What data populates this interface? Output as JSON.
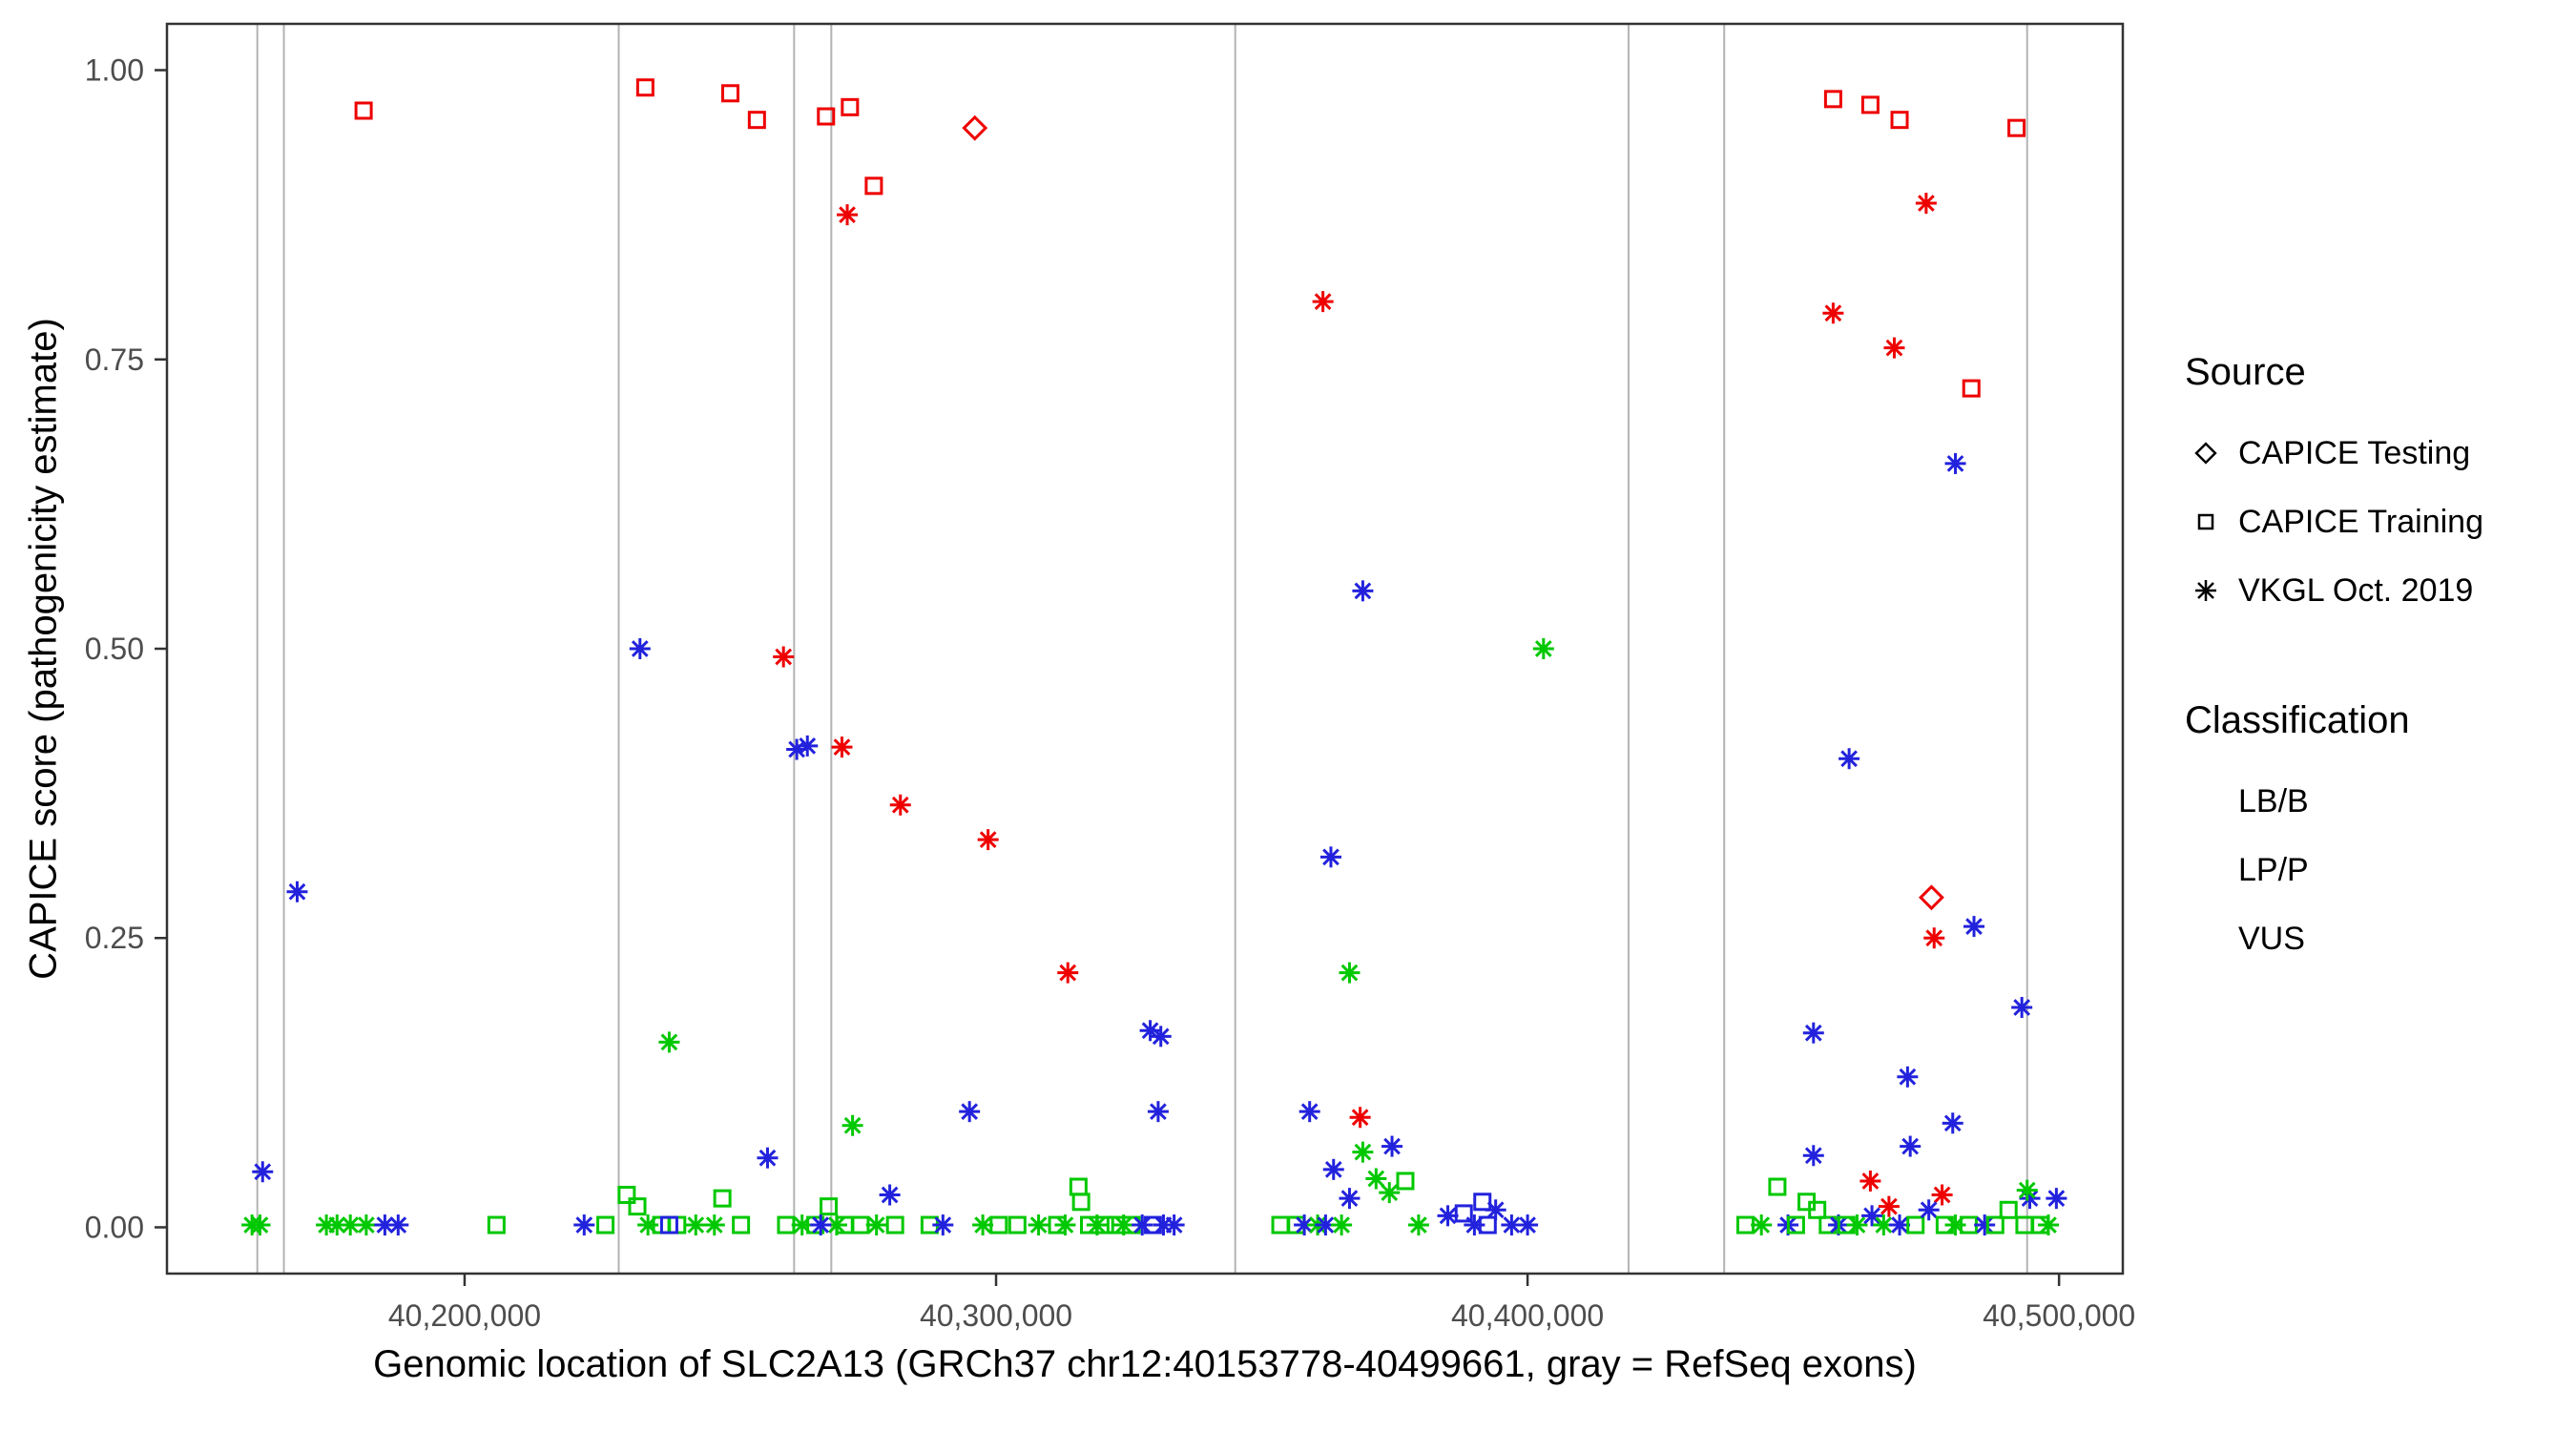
{
  "chart_data": {
    "type": "scatter",
    "title": "",
    "xlabel": "Genomic location of SLC2A13 (GRCh37 chr12:40153778-40499661, gray = RefSeq exons)",
    "ylabel": "CAPICE score (pathogenicity estimate)",
    "xlim": [
      40144000,
      40512000
    ],
    "ylim": [
      -0.04,
      1.04
    ],
    "grid": false,
    "x_ticks": [
      {
        "value": 40200000,
        "label": "40,200,000"
      },
      {
        "value": 40300000,
        "label": "40,300,000"
      },
      {
        "value": 40400000,
        "label": "40,400,000"
      },
      {
        "value": 40500000,
        "label": "40,500,000"
      }
    ],
    "y_ticks": [
      {
        "value": 0.0,
        "label": "0.00"
      },
      {
        "value": 0.25,
        "label": "0.25"
      },
      {
        "value": 0.5,
        "label": "0.50"
      },
      {
        "value": 0.75,
        "label": "0.75"
      },
      {
        "value": 1.0,
        "label": "1.00"
      }
    ],
    "exon_color": "#B3B3B3",
    "exon_positions": [
      40161000,
      40166000,
      40229000,
      40262000,
      40269000,
      40345000,
      40419000,
      40437000,
      40494000
    ],
    "classification_colors": {
      "LB/B": "#00C800",
      "LP/P": "#EE0000",
      "VUS": "#2222DD"
    },
    "source_shapes": {
      "testing": "diamond",
      "training": "square",
      "vkgl": "asterisk"
    },
    "points": [
      [
        40181000,
        0.965,
        "LP/P",
        "training"
      ],
      [
        40234000,
        0.985,
        "LP/P",
        "training"
      ],
      [
        40250000,
        0.98,
        "LP/P",
        "training"
      ],
      [
        40255000,
        0.957,
        "LP/P",
        "training"
      ],
      [
        40268000,
        0.96,
        "LP/P",
        "training"
      ],
      [
        40272500,
        0.968,
        "LP/P",
        "training"
      ],
      [
        40277000,
        0.9,
        "LP/P",
        "training"
      ],
      [
        40457500,
        0.975,
        "LP/P",
        "training"
      ],
      [
        40464500,
        0.97,
        "LP/P",
        "training"
      ],
      [
        40470000,
        0.957,
        "LP/P",
        "training"
      ],
      [
        40492000,
        0.95,
        "LP/P",
        "training"
      ],
      [
        40483500,
        0.725,
        "LP/P",
        "training"
      ],
      [
        40296000,
        0.95,
        "LP/P",
        "testing"
      ],
      [
        40476000,
        0.285,
        "LP/P",
        "testing"
      ],
      [
        40272000,
        0.875,
        "LP/P",
        "vkgl"
      ],
      [
        40260000,
        0.493,
        "LP/P",
        "vkgl"
      ],
      [
        40271000,
        0.415,
        "LP/P",
        "vkgl"
      ],
      [
        40282000,
        0.365,
        "LP/P",
        "vkgl"
      ],
      [
        40298500,
        0.335,
        "LP/P",
        "vkgl"
      ],
      [
        40313500,
        0.22,
        "LP/P",
        "vkgl"
      ],
      [
        40361500,
        0.8,
        "LP/P",
        "vkgl"
      ],
      [
        40368500,
        0.095,
        "LP/P",
        "vkgl"
      ],
      [
        40457500,
        0.79,
        "LP/P",
        "vkgl"
      ],
      [
        40469000,
        0.76,
        "LP/P",
        "vkgl"
      ],
      [
        40475000,
        0.885,
        "LP/P",
        "vkgl"
      ],
      [
        40476500,
        0.25,
        "LP/P",
        "vkgl"
      ],
      [
        40464500,
        0.04,
        "LP/P",
        "vkgl"
      ],
      [
        40468000,
        0.018,
        "LP/P",
        "vkgl"
      ],
      [
        40478000,
        0.028,
        "LP/P",
        "vkgl"
      ],
      [
        40162000,
        0.048,
        "VUS",
        "vkgl"
      ],
      [
        40168500,
        0.29,
        "VUS",
        "vkgl"
      ],
      [
        40233000,
        0.5,
        "VUS",
        "vkgl"
      ],
      [
        40262500,
        0.413,
        "VUS",
        "vkgl"
      ],
      [
        40264500,
        0.416,
        "VUS",
        "vkgl"
      ],
      [
        40257000,
        0.06,
        "VUS",
        "vkgl"
      ],
      [
        40280000,
        0.028,
        "VUS",
        "vkgl"
      ],
      [
        40295000,
        0.1,
        "VUS",
        "vkgl"
      ],
      [
        40329000,
        0.17,
        "VUS",
        "vkgl"
      ],
      [
        40331000,
        0.165,
        "VUS",
        "vkgl"
      ],
      [
        40330500,
        0.1,
        "VUS",
        "vkgl"
      ],
      [
        40369000,
        0.55,
        "VUS",
        "vkgl"
      ],
      [
        40363000,
        0.32,
        "VUS",
        "vkgl"
      ],
      [
        40359000,
        0.1,
        "VUS",
        "vkgl"
      ],
      [
        40363500,
        0.05,
        "VUS",
        "vkgl"
      ],
      [
        40374500,
        0.07,
        "VUS",
        "vkgl"
      ],
      [
        40460500,
        0.405,
        "VUS",
        "vkgl"
      ],
      [
        40480500,
        0.66,
        "VUS",
        "vkgl"
      ],
      [
        40484000,
        0.26,
        "VUS",
        "vkgl"
      ],
      [
        40453800,
        0.168,
        "VUS",
        "vkgl"
      ],
      [
        40471500,
        0.13,
        "VUS",
        "vkgl"
      ],
      [
        40480000,
        0.09,
        "VUS",
        "vkgl"
      ],
      [
        40493000,
        0.19,
        "VUS",
        "vkgl"
      ],
      [
        40494500,
        0.025,
        "VUS",
        "vkgl"
      ],
      [
        40453800,
        0.062,
        "VUS",
        "vkgl"
      ],
      [
        40472000,
        0.07,
        "VUS",
        "vkgl"
      ],
      [
        40238500,
        0.16,
        "LB/B",
        "vkgl"
      ],
      [
        40273000,
        0.088,
        "LB/B",
        "vkgl"
      ],
      [
        40366500,
        0.22,
        "LB/B",
        "vkgl"
      ],
      [
        40403000,
        0.5,
        "LB/B",
        "vkgl"
      ],
      [
        40369000,
        0.065,
        "LB/B",
        "vkgl"
      ],
      [
        40371500,
        0.042,
        "LB/B",
        "vkgl"
      ],
      [
        40374000,
        0.03,
        "LB/B",
        "vkgl"
      ],
      [
        40494000,
        0.032,
        "LB/B",
        "vkgl"
      ],
      [
        40160000,
        0.002,
        "LB/B",
        "vkgl"
      ],
      [
        40161500,
        0.002,
        "LB/B",
        "vkgl"
      ],
      [
        40174000,
        0.002,
        "LB/B",
        "vkgl"
      ],
      [
        40176000,
        0.002,
        "LB/B",
        "vkgl"
      ],
      [
        40178500,
        0.002,
        "LB/B",
        "vkgl"
      ],
      [
        40181500,
        0.002,
        "LB/B",
        "vkgl"
      ],
      [
        40185000,
        0.002,
        "VUS",
        "vkgl"
      ],
      [
        40187500,
        0.002,
        "VUS",
        "vkgl"
      ],
      [
        40206000,
        0.002,
        "LB/B",
        "training"
      ],
      [
        40222500,
        0.002,
        "VUS",
        "vkgl"
      ],
      [
        40226500,
        0.002,
        "LB/B",
        "training"
      ],
      [
        40230500,
        0.028,
        "LB/B",
        "training"
      ],
      [
        40232500,
        0.018,
        "LB/B",
        "training"
      ],
      [
        40234500,
        0.002,
        "LB/B",
        "vkgl"
      ],
      [
        40237000,
        0.002,
        "LB/B",
        "training"
      ],
      [
        40240000,
        0.002,
        "LB/B",
        "training"
      ],
      [
        40243500,
        0.002,
        "LB/B",
        "vkgl"
      ],
      [
        40248500,
        0.025,
        "LB/B",
        "training"
      ],
      [
        40247000,
        0.002,
        "LB/B",
        "vkgl"
      ],
      [
        40252000,
        0.002,
        "LB/B",
        "training"
      ],
      [
        40238500,
        0.002,
        "VUS",
        "training"
      ],
      [
        40260500,
        0.002,
        "LB/B",
        "training"
      ],
      [
        40263500,
        0.002,
        "LB/B",
        "vkgl"
      ],
      [
        40266000,
        0.002,
        "LB/B",
        "training"
      ],
      [
        40268500,
        0.018,
        "LB/B",
        "training"
      ],
      [
        40270000,
        0.002,
        "LB/B",
        "vkgl"
      ],
      [
        40271500,
        0.002,
        "LB/B",
        "training"
      ],
      [
        40267000,
        0.002,
        "VUS",
        "vkgl"
      ],
      [
        40274500,
        0.002,
        "LB/B",
        "training"
      ],
      [
        40277500,
        0.002,
        "LB/B",
        "vkgl"
      ],
      [
        40281000,
        0.002,
        "LB/B",
        "training"
      ],
      [
        40287500,
        0.002,
        "LB/B",
        "training"
      ],
      [
        40290000,
        0.002,
        "VUS",
        "vkgl"
      ],
      [
        40297500,
        0.002,
        "LB/B",
        "vkgl"
      ],
      [
        40300500,
        0.002,
        "LB/B",
        "training"
      ],
      [
        40304000,
        0.002,
        "LB/B",
        "training"
      ],
      [
        40308000,
        0.002,
        "LB/B",
        "vkgl"
      ],
      [
        40311500,
        0.002,
        "LB/B",
        "training"
      ],
      [
        40313000,
        0.002,
        "LB/B",
        "vkgl"
      ],
      [
        40315500,
        0.035,
        "LB/B",
        "training"
      ],
      [
        40316000,
        0.022,
        "LB/B",
        "training"
      ],
      [
        40317500,
        0.002,
        "LB/B",
        "training"
      ],
      [
        40319000,
        0.002,
        "LB/B",
        "vkgl"
      ],
      [
        40320500,
        0.002,
        "LB/B",
        "training"
      ],
      [
        40322500,
        0.002,
        "LB/B",
        "training"
      ],
      [
        40324000,
        0.002,
        "LB/B",
        "vkgl"
      ],
      [
        40325500,
        0.002,
        "LB/B",
        "training"
      ],
      [
        40327500,
        0.002,
        "VUS",
        "vkgl"
      ],
      [
        40329500,
        0.002,
        "VUS",
        "training"
      ],
      [
        40331500,
        0.002,
        "VUS",
        "vkgl"
      ],
      [
        40333500,
        0.002,
        "VUS",
        "vkgl"
      ],
      [
        40353500,
        0.002,
        "LB/B",
        "training"
      ],
      [
        40356500,
        0.002,
        "LB/B",
        "training"
      ],
      [
        40358000,
        0.002,
        "VUS",
        "vkgl"
      ],
      [
        40360500,
        0.002,
        "LB/B",
        "vkgl"
      ],
      [
        40362000,
        0.002,
        "VUS",
        "vkgl"
      ],
      [
        40365000,
        0.002,
        "LB/B",
        "vkgl"
      ],
      [
        40366500,
        0.025,
        "VUS",
        "vkgl"
      ],
      [
        40377000,
        0.04,
        "LB/B",
        "training"
      ],
      [
        40379500,
        0.002,
        "LB/B",
        "vkgl"
      ],
      [
        40385000,
        0.01,
        "VUS",
        "vkgl"
      ],
      [
        40388000,
        0.012,
        "VUS",
        "training"
      ],
      [
        40390000,
        0.002,
        "VUS",
        "vkgl"
      ],
      [
        40391500,
        0.022,
        "VUS",
        "training"
      ],
      [
        40394000,
        0.015,
        "VUS",
        "vkgl"
      ],
      [
        40397000,
        0.002,
        "VUS",
        "vkgl"
      ],
      [
        40400000,
        0.002,
        "VUS",
        "vkgl"
      ],
      [
        40392500,
        0.002,
        "VUS",
        "training"
      ],
      [
        40441000,
        0.002,
        "LB/B",
        "training"
      ],
      [
        40444000,
        0.002,
        "LB/B",
        "vkgl"
      ],
      [
        40447000,
        0.035,
        "LB/B",
        "training"
      ],
      [
        40449000,
        0.002,
        "VUS",
        "vkgl"
      ],
      [
        40450500,
        0.002,
        "LB/B",
        "training"
      ],
      [
        40452500,
        0.022,
        "LB/B",
        "training"
      ],
      [
        40454500,
        0.015,
        "LB/B",
        "training"
      ],
      [
        40456500,
        0.002,
        "LB/B",
        "training"
      ],
      [
        40458500,
        0.002,
        "VUS",
        "vkgl"
      ],
      [
        40460000,
        0.002,
        "LB/B",
        "training"
      ],
      [
        40462000,
        0.002,
        "LB/B",
        "vkgl"
      ],
      [
        40464800,
        0.01,
        "VUS",
        "vkgl"
      ],
      [
        40467000,
        0.002,
        "LB/B",
        "vkgl"
      ],
      [
        40470000,
        0.002,
        "VUS",
        "vkgl"
      ],
      [
        40473000,
        0.002,
        "LB/B",
        "training"
      ],
      [
        40475500,
        0.015,
        "VUS",
        "vkgl"
      ],
      [
        40478500,
        0.002,
        "LB/B",
        "training"
      ],
      [
        40480500,
        0.002,
        "LB/B",
        "vkgl"
      ],
      [
        40483000,
        0.002,
        "LB/B",
        "training"
      ],
      [
        40486000,
        0.002,
        "VUS",
        "vkgl"
      ],
      [
        40488000,
        0.002,
        "LB/B",
        "training"
      ],
      [
        40490500,
        0.015,
        "LB/B",
        "training"
      ],
      [
        40493500,
        0.002,
        "LB/B",
        "training"
      ],
      [
        40496500,
        0.002,
        "LB/B",
        "training"
      ],
      [
        40498000,
        0.002,
        "LB/B",
        "vkgl"
      ],
      [
        40499500,
        0.025,
        "VUS",
        "vkgl"
      ]
    ]
  },
  "legend": {
    "source": {
      "title": "Source",
      "items": [
        {
          "label": "CAPICE Testing",
          "shape": "diamond"
        },
        {
          "label": "CAPICE Training",
          "shape": "square"
        },
        {
          "label": "VKGL Oct. 2019",
          "shape": "asterisk"
        }
      ]
    },
    "classification": {
      "title": "Classification",
      "items": [
        {
          "label": "LB/B",
          "color": "#00C800"
        },
        {
          "label": "LP/P",
          "color": "#EE0000"
        },
        {
          "label": "VUS",
          "color": "#2222DD"
        }
      ]
    }
  }
}
